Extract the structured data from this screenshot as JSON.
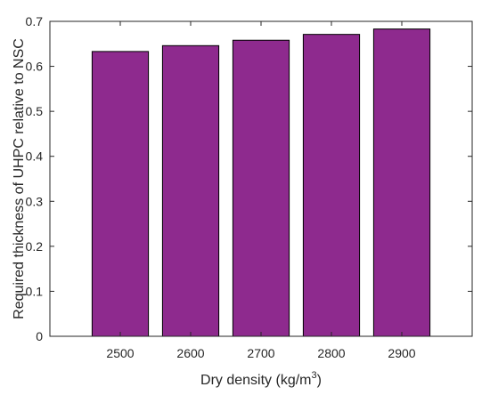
{
  "chart_data": {
    "type": "bar",
    "categories": [
      "2500",
      "2600",
      "2700",
      "2800",
      "2900"
    ],
    "values": [
      0.633,
      0.646,
      0.658,
      0.671,
      0.683
    ],
    "xlabel": "Dry density (kg/m",
    "xlabel_sup": "3",
    "xlabel_suffix": ")",
    "ylabel": "Required thickness of UHPC relative to NSC",
    "ylim": [
      0,
      0.7
    ],
    "xlim": [
      2400,
      3000
    ],
    "yticks": [
      "0",
      "0.1",
      "0.2",
      "0.3",
      "0.4",
      "0.5",
      "0.6",
      "0.7"
    ],
    "bar_color": "#8e2a8e",
    "grid": false,
    "legend": "none"
  }
}
